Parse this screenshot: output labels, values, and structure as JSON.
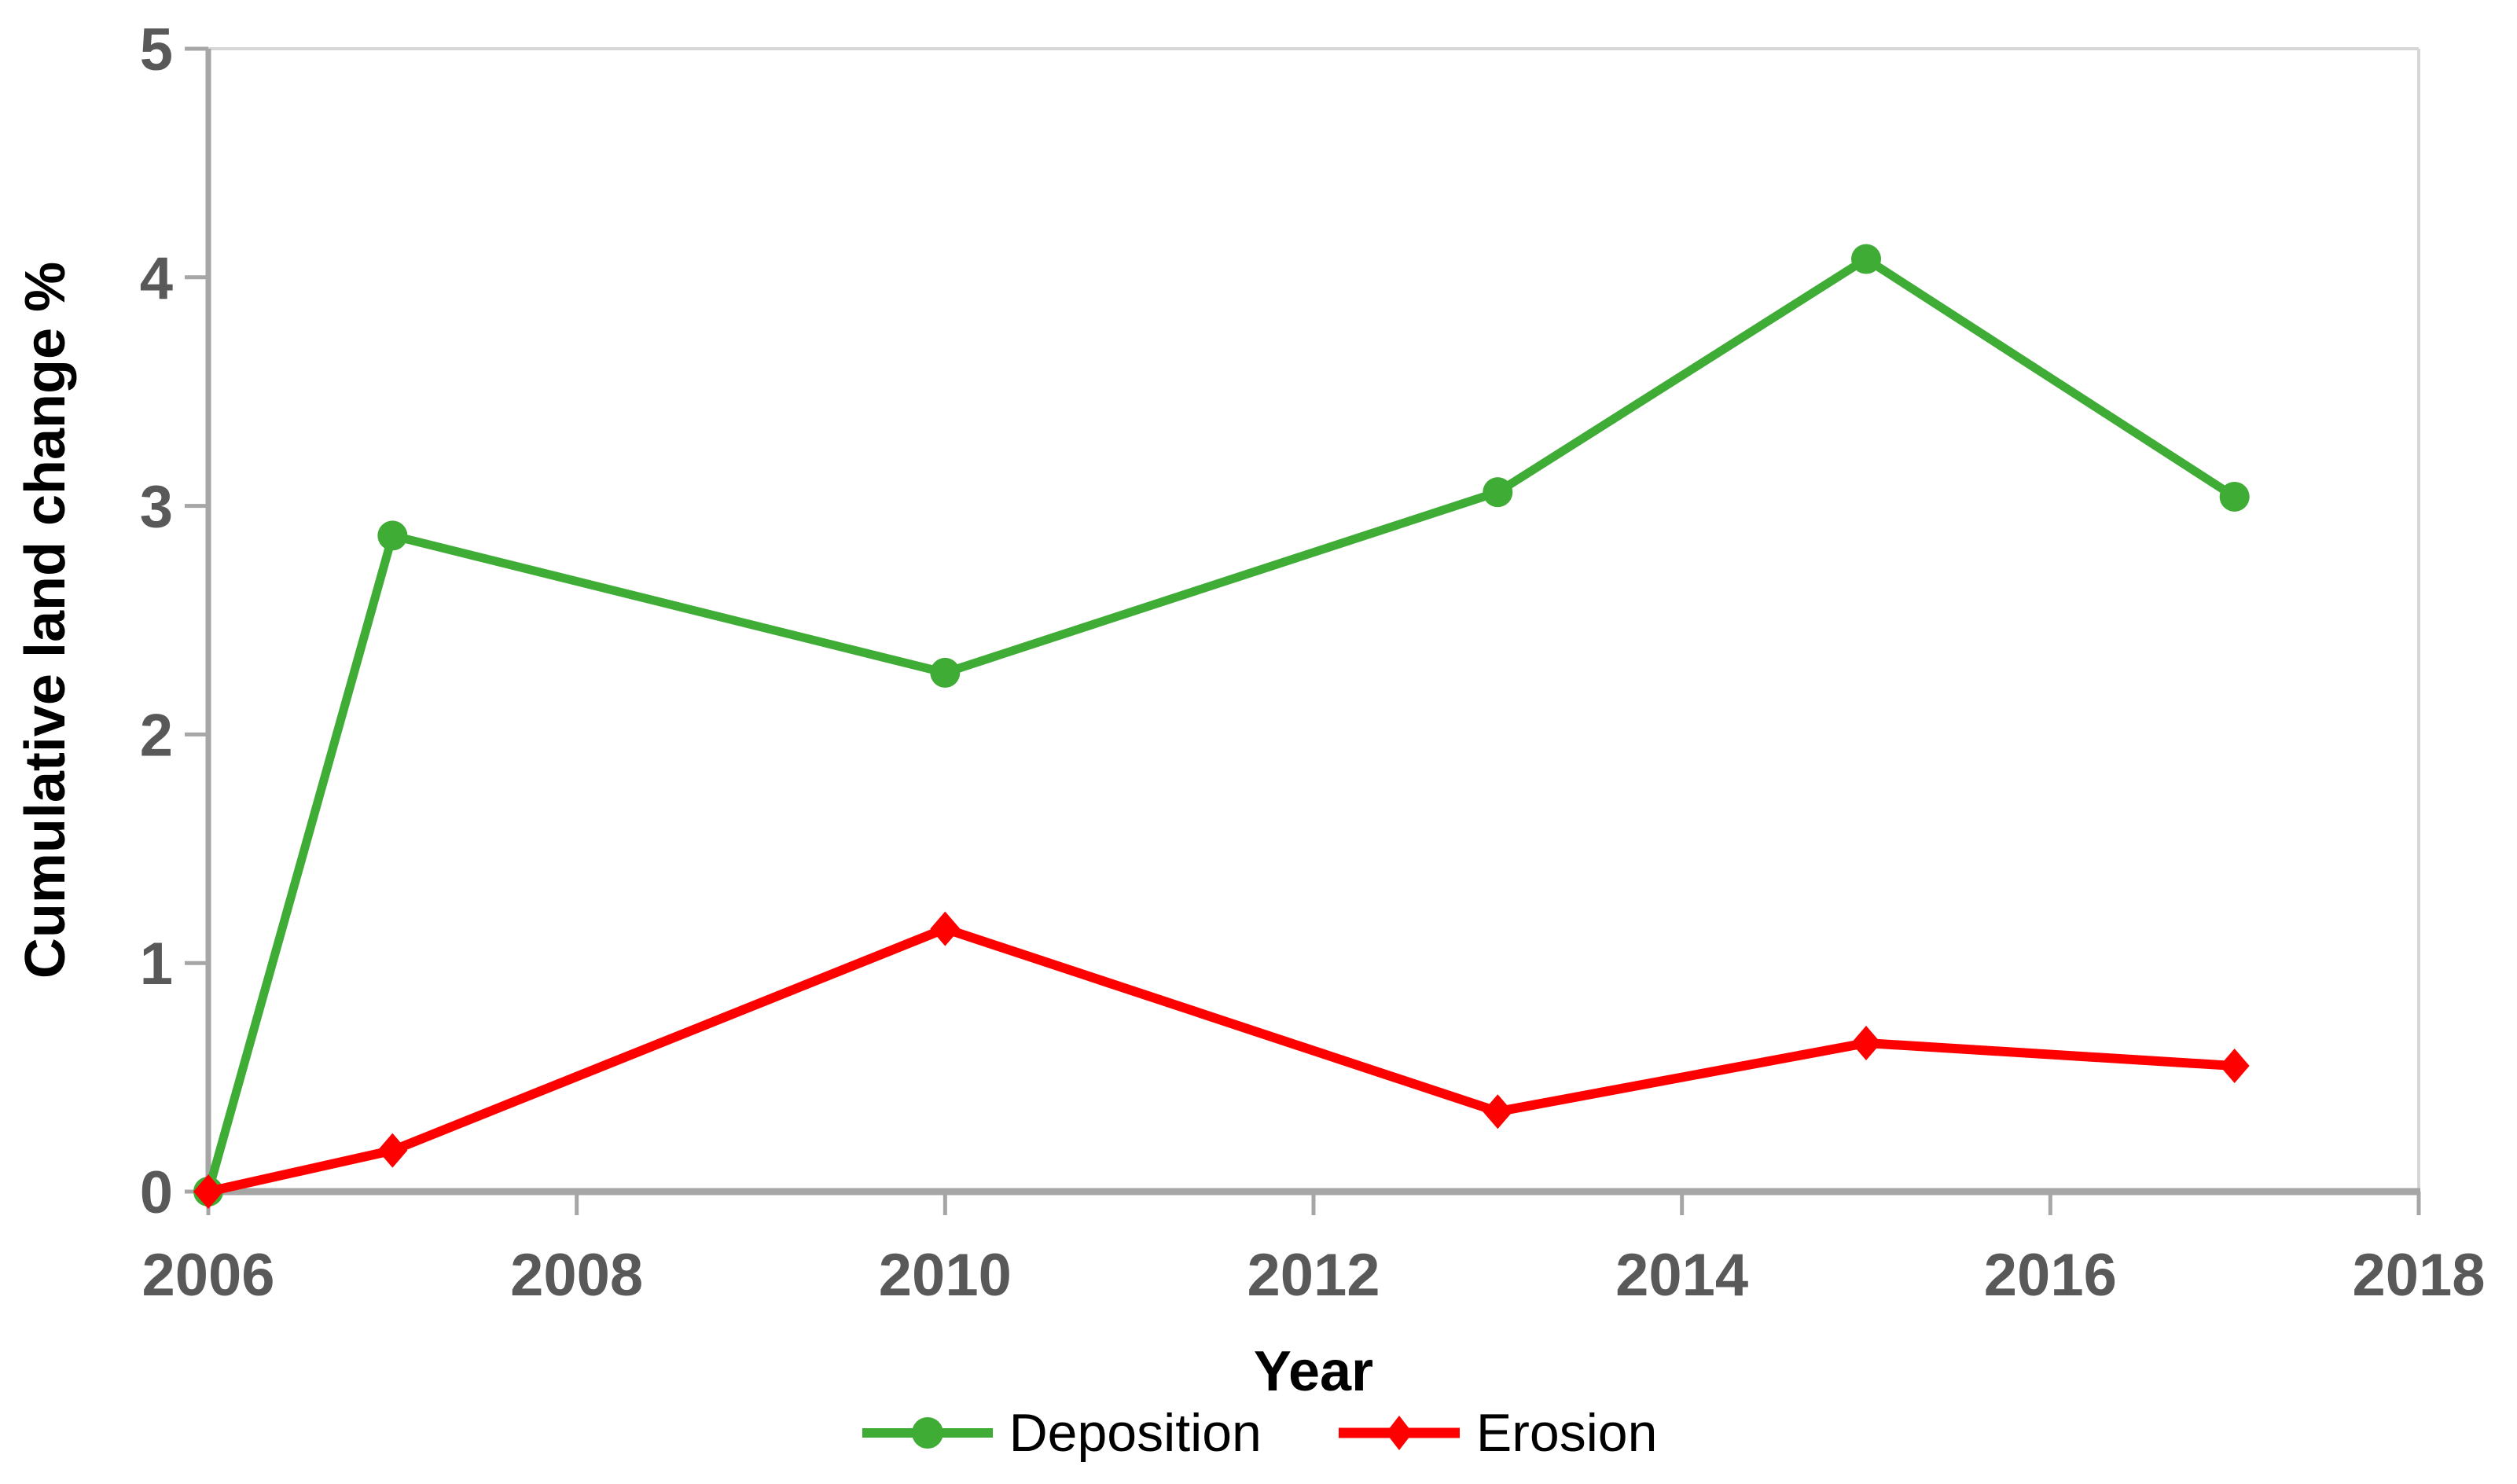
{
  "chart_data": {
    "type": "line",
    "title": "",
    "xlabel": "Year",
    "ylabel": "Cumulative land change %",
    "x": [
      2006,
      2007,
      2010,
      2013,
      2015,
      2017
    ],
    "series": [
      {
        "name": "Deposition",
        "marker": "circle",
        "color": "#3FAC35",
        "values": [
          0,
          2.87,
          2.27,
          3.06,
          4.08,
          3.04
        ]
      },
      {
        "name": "Erosion",
        "marker": "diamond",
        "color": "#FF0000",
        "values": [
          0,
          0.18,
          1.15,
          0.35,
          0.65,
          0.55
        ]
      }
    ],
    "xlim": [
      2006,
      2018
    ],
    "ylim": [
      0,
      5
    ],
    "xticks": [
      2006,
      2008,
      2010,
      2012,
      2014,
      2016,
      2018
    ],
    "yticks": [
      0,
      1,
      2,
      3,
      4,
      5
    ],
    "grid": false,
    "legend_position": "bottom"
  },
  "style_colors": {
    "tick_label": "#595959",
    "axis_line": "#A6A6A6",
    "plot_border": "#D6D6D6",
    "background": "#FFFFFF"
  }
}
